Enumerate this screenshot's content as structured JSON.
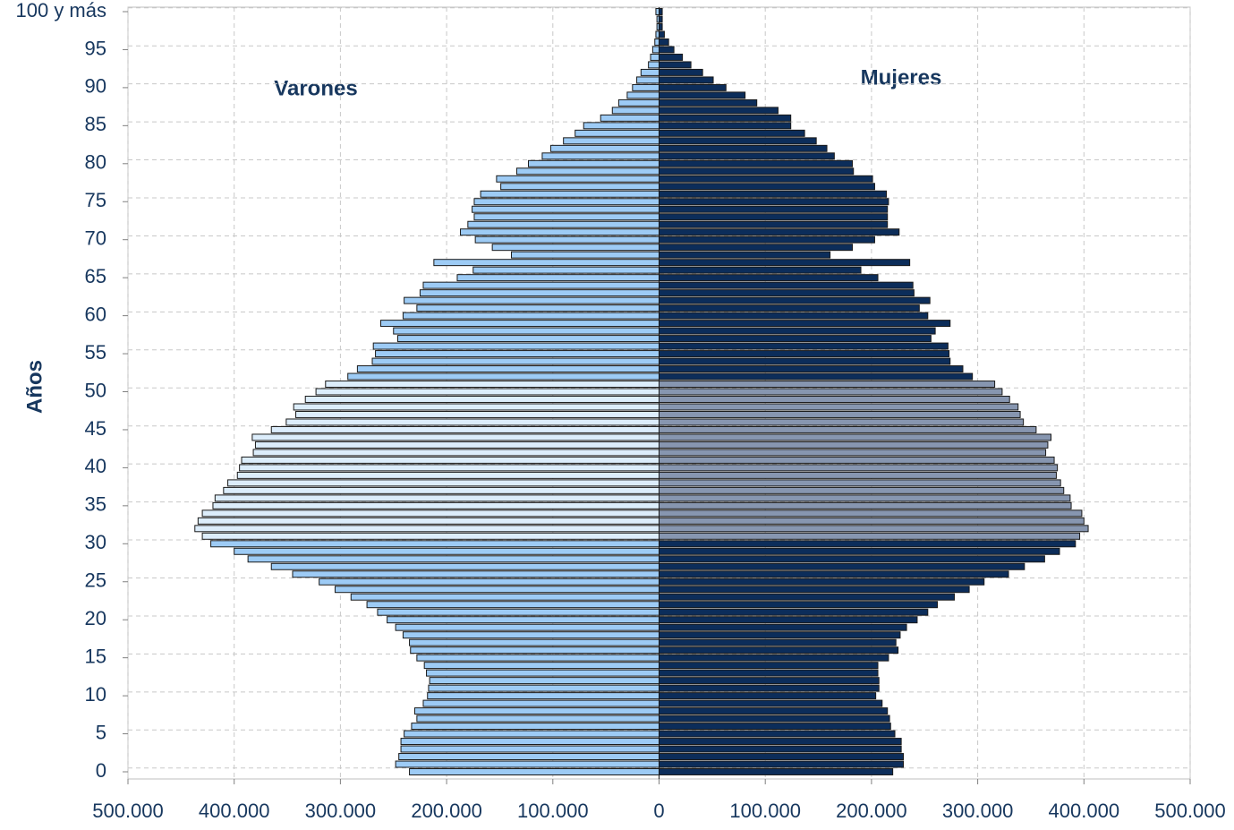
{
  "chart_data": {
    "type": "pyramid",
    "ylabel": "Años",
    "categories": [
      "0",
      null,
      null,
      null,
      null,
      "5",
      null,
      null,
      null,
      null,
      "10",
      null,
      null,
      null,
      null,
      "15",
      null,
      null,
      null,
      null,
      "20",
      null,
      null,
      null,
      null,
      "25",
      null,
      null,
      null,
      null,
      "30",
      null,
      null,
      null,
      null,
      "35",
      null,
      null,
      null,
      null,
      "40",
      null,
      null,
      null,
      null,
      "45",
      null,
      null,
      null,
      null,
      "50",
      null,
      null,
      null,
      null,
      "55",
      null,
      null,
      null,
      null,
      "60",
      null,
      null,
      null,
      null,
      "65",
      null,
      null,
      null,
      null,
      "70",
      null,
      null,
      null,
      null,
      "75",
      null,
      null,
      null,
      null,
      "80",
      null,
      null,
      null,
      null,
      "85",
      null,
      null,
      null,
      null,
      "90",
      null,
      null,
      null,
      null,
      "95",
      null,
      null,
      null,
      null,
      "100 y más"
    ],
    "xlim": [
      -500000,
      500000
    ],
    "xticks": [
      {
        "value": -500000,
        "label": "500.000"
      },
      {
        "value": -400000,
        "label": "400.000"
      },
      {
        "value": -300000,
        "label": "300.000"
      },
      {
        "value": -200000,
        "label": "200.000"
      },
      {
        "value": -100000,
        "label": "100.000"
      },
      0,
      {
        "value": 100000,
        "label": "100.000"
      },
      {
        "value": 200000,
        "label": "200.000"
      },
      {
        "value": 300000,
        "label": "300.000"
      },
      {
        "value": 400000,
        "label": "400.000"
      },
      {
        "value": 500000,
        "label": "500.000"
      }
    ],
    "grid": true,
    "series": [
      {
        "name": "Varones",
        "values": [
          -235000,
          -248000,
          -245000,
          -243000,
          -243000,
          -240000,
          -233000,
          -228000,
          -230000,
          -222000,
          -218000,
          -217000,
          -216000,
          -219000,
          -221000,
          -228000,
          -234000,
          -235000,
          -241000,
          -248000,
          -256000,
          -265000,
          -275000,
          -290000,
          -305000,
          -320000,
          -345000,
          -365000,
          -387000,
          -400000,
          -422000,
          -430000,
          -437000,
          -434000,
          -430000,
          -420000,
          -418000,
          -410000,
          -406000,
          -397000,
          -395000,
          -393000,
          -382000,
          -380000,
          -383000,
          -365000,
          -351000,
          -342000,
          -344000,
          -333000,
          -323000,
          -314000,
          -293000,
          -284000,
          -270000,
          -267000,
          -269000,
          -246000,
          -250000,
          -262000,
          -241000,
          -228000,
          -240000,
          -225000,
          -222000,
          -190000,
          -175000,
          -212000,
          -139000,
          -157000,
          -173000,
          -187000,
          -180000,
          -174000,
          -176000,
          -174000,
          -168000,
          -149000,
          -153000,
          -134000,
          -123000,
          -110000,
          -102000,
          -90000,
          -79000,
          -71000,
          -55000,
          -44000,
          -38000,
          -30000,
          -25000,
          -21000,
          -17000,
          -10000,
          -8000,
          -6000,
          -4000,
          -3000,
          -2000,
          -2000,
          -3000
        ],
        "colors": [
          "#9dcbf5",
          "#9dcbf5",
          "#9dcbf5",
          "#9dcbf5",
          "#9dcbf5",
          "#9dcbf5",
          "#9dcbf5",
          "#9dcbf5",
          "#9dcbf5",
          "#9dcbf5",
          "#9dcbf5",
          "#9dcbf5",
          "#9dcbf5",
          "#9dcbf5",
          "#9dcbf5",
          "#9dcbf5",
          "#9dcbf5",
          "#9dcbf5",
          "#9dcbf5",
          "#9dcbf5",
          "#9dcbf5",
          "#9dcbf5",
          "#9dcbf5",
          "#9dcbf5",
          "#9dcbf5",
          "#9dcbf5",
          "#9dcbf5",
          "#9dcbf5",
          "#9dcbf5",
          "#9dcbf5",
          "#9dcbf5",
          "#dcedfb",
          "#dcedfb",
          "#dcedfb",
          "#dcedfb",
          "#dcedfb",
          "#dcedfb",
          "#dcedfb",
          "#dcedfb",
          "#dcedfb",
          "#dcedfb",
          "#dcedfb",
          "#dcedfb",
          "#dcedfb",
          "#dcedfb",
          "#dcedfb",
          "#dcedfb",
          "#dcedfb",
          "#dcedfb",
          "#dcedfb",
          "#dcedfb",
          "#dcedfb",
          "#9dcbf5",
          "#9dcbf5",
          "#9dcbf5",
          "#9dcbf5",
          "#9dcbf5",
          "#9dcbf5",
          "#9dcbf5",
          "#9dcbf5",
          "#9dcbf5",
          "#9dcbf5",
          "#9dcbf5",
          "#9dcbf5",
          "#9dcbf5",
          "#9dcbf5",
          "#9dcbf5",
          "#9dcbf5",
          "#9dcbf5",
          "#9dcbf5",
          "#9dcbf5",
          "#9dcbf5",
          "#9dcbf5",
          "#9dcbf5",
          "#9dcbf5",
          "#9dcbf5",
          "#9dcbf5",
          "#9dcbf5",
          "#9dcbf5",
          "#9dcbf5",
          "#9dcbf5",
          "#9dcbf5",
          "#9dcbf5",
          "#9dcbf5",
          "#9dcbf5",
          "#9dcbf5",
          "#9dcbf5",
          "#9dcbf5",
          "#9dcbf5",
          "#9dcbf5",
          "#9dcbf5",
          "#9dcbf5",
          "#9dcbf5",
          "#9dcbf5",
          "#9dcbf5",
          "#9dcbf5",
          "#9dcbf5",
          "#9dcbf5",
          "#9dcbf5",
          "#9dcbf5",
          "#9dcbf5"
        ]
      },
      {
        "name": "Mujeres",
        "values": [
          220000,
          230000,
          230000,
          228000,
          228000,
          222000,
          218000,
          217000,
          215000,
          210000,
          204000,
          207000,
          207000,
          206000,
          206000,
          216000,
          225000,
          223000,
          227000,
          233000,
          243000,
          253000,
          262000,
          278000,
          292000,
          306000,
          329000,
          344000,
          363000,
          377000,
          392000,
          396000,
          404000,
          400000,
          398000,
          388000,
          387000,
          381000,
          378000,
          374000,
          375000,
          372000,
          364000,
          366000,
          369000,
          355000,
          343000,
          340000,
          338000,
          330000,
          323000,
          316000,
          295000,
          286000,
          274000,
          273000,
          272000,
          256000,
          260000,
          274000,
          253000,
          245000,
          255000,
          240000,
          239000,
          206000,
          190000,
          236000,
          161000,
          182000,
          203000,
          226000,
          215000,
          215000,
          215000,
          216000,
          214000,
          203000,
          201000,
          183000,
          182000,
          165000,
          158000,
          148000,
          137000,
          124000,
          124000,
          112000,
          92000,
          81000,
          63000,
          51000,
          41000,
          30000,
          22000,
          14000,
          9000,
          5000,
          3000,
          3000,
          3000
        ],
        "colors": [
          "#0c2d5a",
          "#0c2d5a",
          "#0c2d5a",
          "#0c2d5a",
          "#0c2d5a",
          "#0c2d5a",
          "#0c2d5a",
          "#0c2d5a",
          "#0c2d5a",
          "#0c2d5a",
          "#0c2d5a",
          "#0c2d5a",
          "#0c2d5a",
          "#0c2d5a",
          "#0c2d5a",
          "#0c2d5a",
          "#0c2d5a",
          "#0c2d5a",
          "#0c2d5a",
          "#0c2d5a",
          "#0c2d5a",
          "#0c2d5a",
          "#0c2d5a",
          "#0c2d5a",
          "#0c2d5a",
          "#0c2d5a",
          "#0c2d5a",
          "#0c2d5a",
          "#0c2d5a",
          "#0c2d5a",
          "#0c2d5a",
          "#8796b0",
          "#8796b0",
          "#8796b0",
          "#8796b0",
          "#8796b0",
          "#8796b0",
          "#8796b0",
          "#8796b0",
          "#8796b0",
          "#8796b0",
          "#8796b0",
          "#8796b0",
          "#8796b0",
          "#8796b0",
          "#8796b0",
          "#8796b0",
          "#8796b0",
          "#8796b0",
          "#8796b0",
          "#8796b0",
          "#8796b0",
          "#0c2d5a",
          "#0c2d5a",
          "#0c2d5a",
          "#0c2d5a",
          "#0c2d5a",
          "#0c2d5a",
          "#0c2d5a",
          "#0c2d5a",
          "#0c2d5a",
          "#0c2d5a",
          "#0c2d5a",
          "#0c2d5a",
          "#0c2d5a",
          "#0c2d5a",
          "#0c2d5a",
          "#0c2d5a",
          "#0c2d5a",
          "#0c2d5a",
          "#0c2d5a",
          "#0c2d5a",
          "#0c2d5a",
          "#0c2d5a",
          "#0c2d5a",
          "#0c2d5a",
          "#0c2d5a",
          "#0c2d5a",
          "#0c2d5a",
          "#0c2d5a",
          "#0c2d5a",
          "#0c2d5a",
          "#0c2d5a",
          "#0c2d5a",
          "#0c2d5a",
          "#0c2d5a",
          "#0c2d5a",
          "#0c2d5a",
          "#0c2d5a",
          "#0c2d5a",
          "#0c2d5a",
          "#0c2d5a",
          "#0c2d5a",
          "#0c2d5a",
          "#0c2d5a",
          "#0c2d5a",
          "#0c2d5a",
          "#0c2d5a",
          "#0c2d5a",
          "#0c2d5a",
          "#0c2d5a"
        ]
      }
    ]
  }
}
